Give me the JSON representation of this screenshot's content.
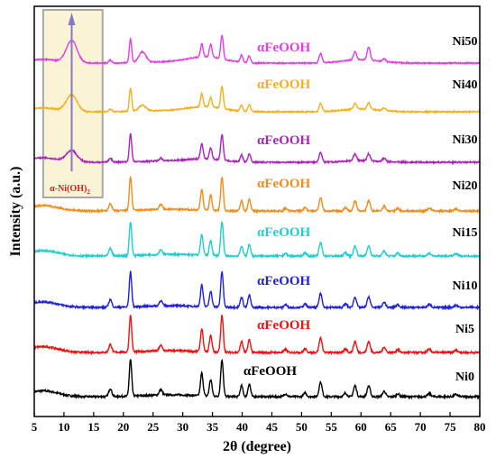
{
  "chart_data": {
    "type": "line",
    "xlabel": "2θ (degree)",
    "ylabel": "Intensity (a.u.)",
    "xlim": [
      5,
      80
    ],
    "xticks": [
      5,
      10,
      15,
      20,
      25,
      30,
      35,
      40,
      45,
      50,
      55,
      60,
      65,
      70,
      75,
      80
    ],
    "y_ticks_shown": false,
    "grid": false,
    "legend": "none",
    "inset": {
      "label": "α-Ni(OH)",
      "label_subscript": "2",
      "x_range": [
        6.5,
        16.5
      ],
      "peak_x": 11.3,
      "fill_color": "#fbf3d6",
      "border_color": "#a8a8a8",
      "arrow_color": "#8878c8",
      "label_color": "#d02020"
    },
    "series": [
      {
        "name": "Ni0",
        "phase_label": "αFeOOH",
        "color": "#000000",
        "phase_color": "#000000",
        "amp": 0.78,
        "ni_oh": 0,
        "broad": 0,
        "peaks": [
          [
            17.8,
            0.25,
            0.22
          ],
          [
            21.2,
            0.2,
            1.0
          ],
          [
            26.3,
            0.25,
            0.15
          ],
          [
            33.2,
            0.22,
            0.62
          ],
          [
            34.7,
            0.22,
            0.45
          ],
          [
            36.6,
            0.22,
            1.0
          ],
          [
            39.9,
            0.22,
            0.3
          ],
          [
            41.2,
            0.22,
            0.35
          ],
          [
            47.3,
            0.25,
            0.08
          ],
          [
            50.6,
            0.25,
            0.1
          ],
          [
            53.2,
            0.25,
            0.4
          ],
          [
            57.4,
            0.25,
            0.1
          ],
          [
            59.0,
            0.25,
            0.3
          ],
          [
            61.3,
            0.25,
            0.3
          ],
          [
            63.9,
            0.25,
            0.15
          ],
          [
            66.2,
            0.25,
            0.08
          ],
          [
            71.5,
            0.3,
            0.08
          ],
          [
            76.0,
            0.3,
            0.06
          ]
        ]
      },
      {
        "name": "Ni5",
        "phase_label": "αFeOOH",
        "color": "#ee1111",
        "phase_color": "#ee1111",
        "amp": 0.78,
        "ni_oh": 0,
        "broad": 0,
        "peaks": [
          [
            17.8,
            0.25,
            0.22
          ],
          [
            21.2,
            0.2,
            1.0
          ],
          [
            26.3,
            0.25,
            0.15
          ],
          [
            33.2,
            0.22,
            0.62
          ],
          [
            34.7,
            0.22,
            0.45
          ],
          [
            36.6,
            0.22,
            1.0
          ],
          [
            39.9,
            0.22,
            0.3
          ],
          [
            41.2,
            0.22,
            0.35
          ],
          [
            47.3,
            0.25,
            0.08
          ],
          [
            50.6,
            0.25,
            0.1
          ],
          [
            53.2,
            0.25,
            0.4
          ],
          [
            57.4,
            0.25,
            0.1
          ],
          [
            59.0,
            0.25,
            0.3
          ],
          [
            61.3,
            0.25,
            0.3
          ],
          [
            63.9,
            0.25,
            0.15
          ],
          [
            66.2,
            0.25,
            0.08
          ],
          [
            71.5,
            0.3,
            0.08
          ],
          [
            76.0,
            0.3,
            0.06
          ]
        ]
      },
      {
        "name": "Ni10",
        "phase_label": "αFeOOH",
        "color": "#1f1fdd",
        "phase_color": "#1f1fdd",
        "amp": 0.75,
        "ni_oh": 0,
        "broad": 0,
        "peaks": [
          [
            17.8,
            0.25,
            0.22
          ],
          [
            21.2,
            0.2,
            1.0
          ],
          [
            26.3,
            0.25,
            0.15
          ],
          [
            33.2,
            0.22,
            0.62
          ],
          [
            34.7,
            0.22,
            0.45
          ],
          [
            36.6,
            0.22,
            1.0
          ],
          [
            39.9,
            0.22,
            0.3
          ],
          [
            41.2,
            0.22,
            0.35
          ],
          [
            47.3,
            0.25,
            0.08
          ],
          [
            50.6,
            0.25,
            0.1
          ],
          [
            53.2,
            0.25,
            0.4
          ],
          [
            57.4,
            0.25,
            0.1
          ],
          [
            59.0,
            0.25,
            0.3
          ],
          [
            61.3,
            0.25,
            0.3
          ],
          [
            63.9,
            0.25,
            0.15
          ],
          [
            66.2,
            0.25,
            0.08
          ],
          [
            71.5,
            0.3,
            0.08
          ],
          [
            76.0,
            0.3,
            0.06
          ]
        ]
      },
      {
        "name": "Ni15",
        "phase_label": "αFeOOH",
        "color": "#22cccc",
        "phase_color": "#22cccc",
        "amp": 0.72,
        "ni_oh": 0,
        "broad": 0,
        "peaks": [
          [
            17.8,
            0.25,
            0.22
          ],
          [
            21.2,
            0.2,
            1.0
          ],
          [
            26.3,
            0.25,
            0.15
          ],
          [
            33.2,
            0.22,
            0.62
          ],
          [
            34.7,
            0.22,
            0.45
          ],
          [
            36.6,
            0.22,
            1.0
          ],
          [
            39.9,
            0.22,
            0.3
          ],
          [
            41.2,
            0.22,
            0.35
          ],
          [
            47.3,
            0.25,
            0.08
          ],
          [
            50.6,
            0.25,
            0.1
          ],
          [
            53.2,
            0.25,
            0.4
          ],
          [
            57.4,
            0.25,
            0.1
          ],
          [
            59.0,
            0.25,
            0.3
          ],
          [
            61.3,
            0.25,
            0.3
          ],
          [
            63.9,
            0.25,
            0.15
          ],
          [
            66.2,
            0.25,
            0.08
          ],
          [
            71.5,
            0.3,
            0.08
          ],
          [
            76.0,
            0.3,
            0.06
          ]
        ]
      },
      {
        "name": "Ni20",
        "phase_label": "αFeOOH",
        "color": "#f28c1c",
        "phase_color": "#f28c1c",
        "amp": 0.72,
        "ni_oh": 0,
        "broad": 0,
        "peaks": [
          [
            17.8,
            0.25,
            0.22
          ],
          [
            21.2,
            0.2,
            1.0
          ],
          [
            26.3,
            0.25,
            0.15
          ],
          [
            33.2,
            0.22,
            0.62
          ],
          [
            34.7,
            0.22,
            0.45
          ],
          [
            36.6,
            0.22,
            1.0
          ],
          [
            39.9,
            0.22,
            0.3
          ],
          [
            41.2,
            0.22,
            0.35
          ],
          [
            47.3,
            0.25,
            0.08
          ],
          [
            50.6,
            0.25,
            0.1
          ],
          [
            53.2,
            0.25,
            0.4
          ],
          [
            57.4,
            0.25,
            0.1
          ],
          [
            59.0,
            0.25,
            0.3
          ],
          [
            61.3,
            0.25,
            0.3
          ],
          [
            63.9,
            0.25,
            0.15
          ],
          [
            66.2,
            0.25,
            0.08
          ],
          [
            71.5,
            0.3,
            0.08
          ],
          [
            76.0,
            0.3,
            0.06
          ]
        ]
      },
      {
        "name": "Ni30",
        "phase_label": "αFeOOH",
        "color": "#aa22bb",
        "phase_color": "#aa22bb",
        "amp": 0.6,
        "ni_oh": 0.4,
        "broad": 0.1,
        "peaks": [
          [
            17.8,
            0.25,
            0.15
          ],
          [
            21.2,
            0.2,
            1.0
          ],
          [
            26.3,
            0.25,
            0.1
          ],
          [
            33.2,
            0.22,
            0.55
          ],
          [
            34.7,
            0.22,
            0.4
          ],
          [
            36.6,
            0.22,
            0.9
          ],
          [
            39.9,
            0.22,
            0.25
          ],
          [
            41.2,
            0.22,
            0.3
          ],
          [
            53.2,
            0.25,
            0.35
          ],
          [
            59.0,
            0.25,
            0.25
          ],
          [
            61.3,
            0.25,
            0.25
          ],
          [
            63.9,
            0.25,
            0.12
          ]
        ]
      },
      {
        "name": "Ni40",
        "phase_label": "αFeOOH",
        "color": "#f0b020",
        "phase_color": "#f0b020",
        "amp": 0.5,
        "ni_oh": 0.7,
        "broad": 0.2,
        "peaks": [
          [
            17.8,
            0.25,
            0.12
          ],
          [
            21.2,
            0.2,
            1.0
          ],
          [
            23.2,
            0.6,
            0.25
          ],
          [
            33.2,
            0.22,
            0.55
          ],
          [
            34.7,
            0.22,
            0.4
          ],
          [
            36.6,
            0.22,
            0.95
          ],
          [
            39.9,
            0.22,
            0.25
          ],
          [
            41.2,
            0.22,
            0.3
          ],
          [
            53.2,
            0.25,
            0.35
          ],
          [
            59.0,
            0.25,
            0.25
          ],
          [
            61.3,
            0.25,
            0.28
          ],
          [
            63.9,
            0.25,
            0.12
          ]
        ]
      },
      {
        "name": "Ni50",
        "phase_label": "αFeOOH",
        "color": "#e040e0",
        "phase_color": "#e040e0",
        "amp": 0.5,
        "ni_oh": 0.95,
        "broad": 0.25,
        "peaks": [
          [
            17.8,
            0.25,
            0.12
          ],
          [
            21.2,
            0.2,
            1.0
          ],
          [
            23.2,
            0.6,
            0.45
          ],
          [
            33.2,
            0.22,
            0.55
          ],
          [
            34.7,
            0.22,
            0.55
          ],
          [
            36.6,
            0.22,
            1.0
          ],
          [
            39.9,
            0.22,
            0.3
          ],
          [
            41.2,
            0.22,
            0.3
          ],
          [
            53.2,
            0.25,
            0.4
          ],
          [
            59.0,
            0.25,
            0.35
          ],
          [
            61.3,
            0.25,
            0.55
          ],
          [
            63.9,
            0.25,
            0.12
          ]
        ]
      }
    ]
  }
}
